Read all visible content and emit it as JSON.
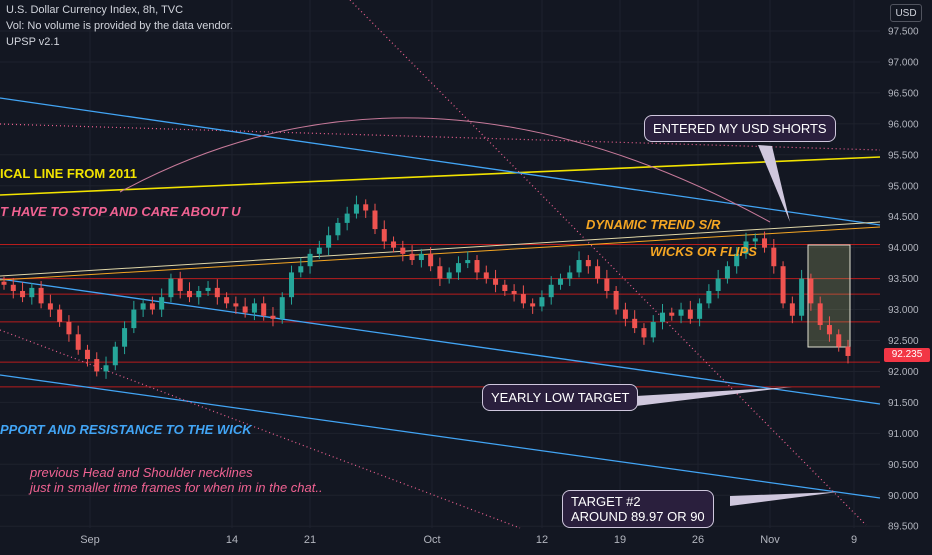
{
  "header": {
    "title": "U.S. Dollar Currency Index, 8h, TVC",
    "volume_note": "Vol: No volume is provided by the data vendor.",
    "indicator": "UPSP v2.1",
    "currency_button": "USD"
  },
  "price_tag": "92.235",
  "annotations": {
    "historical_line": "ICAL LINE FROM 2011",
    "stop_care": "T HAVE TO STOP AND CARE ABOUT U",
    "dynamic_trend": "DYNAMIC TREND S/R",
    "wicks_flips": "WICKS OR FLIPS",
    "support_resistance": "PPORT AND RESISTANCE TO THE WICK",
    "hs_line1": "previous Head and Shoulder necklines",
    "hs_line2": "just in smaller time frames for when im in the chat.."
  },
  "callouts": {
    "entered": "ENTERED MY USD SHORTS",
    "yearly_low": "YEARLY LOW TARGET",
    "target2_line1": "TARGET #2",
    "target2_line2": "AROUND 89.97 OR 90"
  },
  "colors": {
    "background": "#131722",
    "up_candle": "#26a69a",
    "down_candle": "#ef5350",
    "trend_blue": "#42a5f5",
    "yellow_line": "#f2e300",
    "horizontal_red": "#b71c1c",
    "annotation_pink": "#f06292",
    "annotation_orange": "#f5a623"
  },
  "chart_data": {
    "type": "candlestick",
    "y_ticks": [
      "97.500",
      "97.000",
      "96.500",
      "96.000",
      "95.500",
      "95.000",
      "94.500",
      "94.000",
      "93.500",
      "93.000",
      "92.500",
      "92.000",
      "91.500",
      "91.000",
      "90.500",
      "90.000",
      "89.500"
    ],
    "x_ticks": [
      "Sep",
      "14",
      "21",
      "Oct",
      "12",
      "19",
      "26",
      "Nov",
      "9"
    ],
    "ylim": [
      89.5,
      97.5
    ],
    "horizontal_levels": [
      94.05,
      93.5,
      93.25,
      92.8,
      92.15,
      91.75
    ],
    "series": [
      {
        "name": "price",
        "closes": [
          93.4,
          93.3,
          93.2,
          93.35,
          93.1,
          93.0,
          92.8,
          92.6,
          92.35,
          92.2,
          92.0,
          92.1,
          92.4,
          92.7,
          93.0,
          93.1,
          93.0,
          93.2,
          93.5,
          93.3,
          93.2,
          93.3,
          93.35,
          93.2,
          93.1,
          93.05,
          92.95,
          93.1,
          92.9,
          92.85,
          93.2,
          93.6,
          93.7,
          93.9,
          94.0,
          94.2,
          94.4,
          94.55,
          94.7,
          94.6,
          94.3,
          94.1,
          94.0,
          93.9,
          93.8,
          93.9,
          93.7,
          93.5,
          93.6,
          93.75,
          93.8,
          93.6,
          93.5,
          93.4,
          93.3,
          93.25,
          93.1,
          93.05,
          93.2,
          93.4,
          93.5,
          93.6,
          93.8,
          93.7,
          93.5,
          93.3,
          93.0,
          92.85,
          92.7,
          92.55,
          92.8,
          92.95,
          92.9,
          93.0,
          92.85,
          93.1,
          93.3,
          93.5,
          93.7,
          93.9,
          94.1,
          94.15,
          94.0,
          93.7,
          93.1,
          92.9,
          93.5,
          93.1,
          92.75,
          92.6,
          92.4,
          92.25
        ]
      }
    ]
  }
}
